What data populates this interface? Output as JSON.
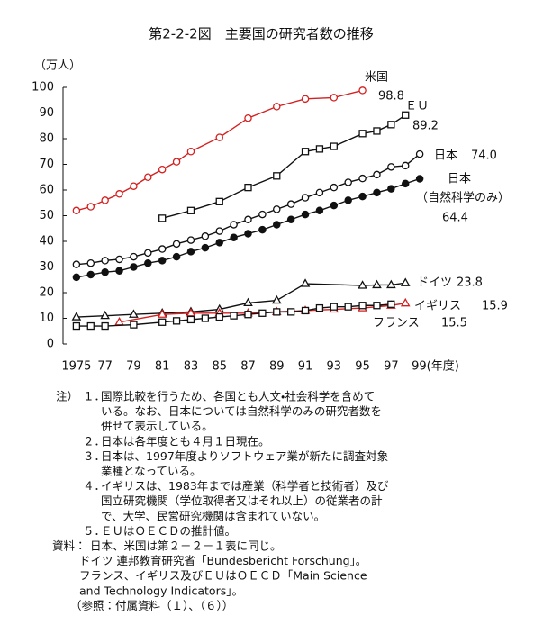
{
  "chart_data": {
    "type": "line",
    "title": "第2-2-2図　主要国の研究者数の推移",
    "y_label": "（万人）",
    "xlim": [
      1974,
      2000
    ],
    "ylim": [
      0,
      100
    ],
    "xticks": [
      1975,
      {
        "value": 1977,
        "label": "77"
      },
      {
        "value": 1979,
        "label": "79"
      },
      {
        "value": 1981,
        "label": "81"
      },
      {
        "value": 1983,
        "label": "83"
      },
      {
        "value": 1985,
        "label": "85"
      },
      {
        "value": 1987,
        "label": "87"
      },
      {
        "value": 1989,
        "label": "89"
      },
      {
        "value": 1991,
        "label": "91"
      },
      {
        "value": 1993,
        "label": "93"
      },
      {
        "value": 1995,
        "label": "95"
      },
      {
        "value": 1997,
        "label": "97"
      },
      {
        "value": 1999,
        "label": "99(年度)"
      }
    ],
    "yticks": [
      0,
      10,
      20,
      30,
      40,
      50,
      60,
      70,
      80,
      90,
      100
    ],
    "series": [
      {
        "name": "米国",
        "color": "#d42020",
        "marker": "circle",
        "filled": false,
        "last_value_label": "98.8",
        "x": [
          1975,
          1976,
          1977,
          1978,
          1979,
          1980,
          1981,
          1982,
          1983,
          1985,
          1987,
          1989,
          1991,
          1993,
          1995
        ],
        "values": [
          52,
          53.5,
          56,
          58.5,
          61.5,
          65,
          68,
          71,
          75,
          80.5,
          88,
          92.5,
          95.5,
          96,
          98.8
        ]
      },
      {
        "name": "ＥＵ",
        "color": "#111111",
        "marker": "square",
        "filled": false,
        "last_value_label": "89.2",
        "x": [
          1981,
          1983,
          1985,
          1987,
          1989,
          1991,
          1992,
          1993,
          1995,
          1996,
          1997,
          1998
        ],
        "values": [
          49,
          52,
          55.5,
          61,
          65.5,
          75,
          76,
          77,
          82,
          83,
          85.5,
          89.2
        ]
      },
      {
        "name": "日本",
        "color": "#111111",
        "marker": "circle",
        "filled": false,
        "last_value_label": "74.0",
        "x": [
          1975,
          1976,
          1977,
          1978,
          1979,
          1980,
          1981,
          1982,
          1983,
          1984,
          1985,
          1986,
          1987,
          1988,
          1989,
          1990,
          1991,
          1992,
          1993,
          1994,
          1995,
          1996,
          1997,
          1998,
          1999
        ],
        "values": [
          31,
          31.5,
          32.5,
          33,
          34,
          35.5,
          37,
          39,
          40.5,
          42,
          44,
          46.5,
          48.5,
          50.5,
          52.5,
          54.5,
          57,
          59,
          61,
          63,
          64.5,
          66,
          69,
          69.5,
          74
        ]
      },
      {
        "name": "日本",
        "note": "（自然科学のみ）",
        "color": "#111111",
        "marker": "circle",
        "filled": true,
        "last_value_label": "64.4",
        "x": [
          1975,
          1976,
          1977,
          1978,
          1979,
          1980,
          1981,
          1982,
          1983,
          1984,
          1985,
          1986,
          1987,
          1988,
          1989,
          1990,
          1991,
          1992,
          1993,
          1994,
          1995,
          1996,
          1997,
          1998,
          1999
        ],
        "values": [
          26,
          27,
          28,
          28.5,
          30,
          31.5,
          32.5,
          34,
          36,
          37.5,
          39.5,
          41.5,
          43,
          44.5,
          46.5,
          48.5,
          50.5,
          52,
          54,
          56,
          57.5,
          59,
          60.5,
          62.5,
          64.4
        ]
      },
      {
        "name": "ドイツ",
        "color": "#111111",
        "marker": "triangle",
        "filled": false,
        "last_value_label": "23.8",
        "x": [
          1975,
          1977,
          1979,
          1981,
          1983,
          1985,
          1987,
          1989,
          1991,
          1995,
          1996,
          1997,
          1998
        ],
        "values": [
          10.5,
          11,
          11.5,
          12,
          12.5,
          13.5,
          16,
          17,
          23.5,
          22.8,
          23,
          23,
          23.8
        ]
      },
      {
        "name": "イギリス",
        "color": "#d42020",
        "marker": "triangle",
        "filled": false,
        "last_value_label": "15.9",
        "x": [
          1978,
          1981,
          1983,
          1985,
          1987,
          1989,
          1991,
          1993,
          1995,
          1997,
          1998
        ],
        "values": [
          8.5,
          11.5,
          12,
          12,
          12,
          12.5,
          13,
          13.5,
          14,
          15,
          15.9
        ]
      },
      {
        "name": "フランス",
        "color": "#111111",
        "marker": "square",
        "filled": false,
        "last_value_label": "15.5",
        "x": [
          1975,
          1976,
          1977,
          1979,
          1981,
          1982,
          1983,
          1984,
          1985,
          1986,
          1987,
          1988,
          1989,
          1990,
          1991,
          1992,
          1993,
          1994,
          1995,
          1996,
          1997
        ],
        "values": [
          7,
          7,
          7,
          7.5,
          8.5,
          9,
          9.5,
          10,
          10.5,
          11,
          11.5,
          12,
          12.5,
          12.5,
          13,
          14,
          14.5,
          14.5,
          15,
          15,
          15.5
        ]
      }
    ]
  },
  "notes": {
    "heading": "注）",
    "items": [
      {
        "num": "１．",
        "lines": [
          "国際比較を行うため、各国とも人文・社会科学を含めて",
          "いる。なお、日本については自然科学のみの研究者数を",
          "併せて表示している。"
        ]
      },
      {
        "num": "２．",
        "lines": [
          "日本は各年度とも４月１日現在。"
        ]
      },
      {
        "num": "３．",
        "lines": [
          "日本は、1997年度よりソフトウェア業が新たに調査対象",
          "業種となっている。"
        ]
      },
      {
        "num": "４．",
        "lines": [
          "イギリスは、1983年までは産業（科学者と技術者）及び",
          "国立研究機関（学位取得者又はそれ以上）の従業者の計",
          "で、大学、民営研究機関は含まれていない。"
        ]
      },
      {
        "num": "５．",
        "lines": [
          "ＥＵはＯＥＣＤの推計値。"
        ]
      }
    ]
  },
  "sources": {
    "heading": "資料：",
    "lines": [
      "日本、米国は第２－２－１表に同じ。",
      "ドイツ 連邦教育研究省「Bundesbericht Forschung」。",
      "フランス、イギリス及びＥＵはＯＥＣＤ「Main Science",
      "and Technology Indicators」。"
    ],
    "reference": "（参照：付属資料（１）、（６））"
  }
}
